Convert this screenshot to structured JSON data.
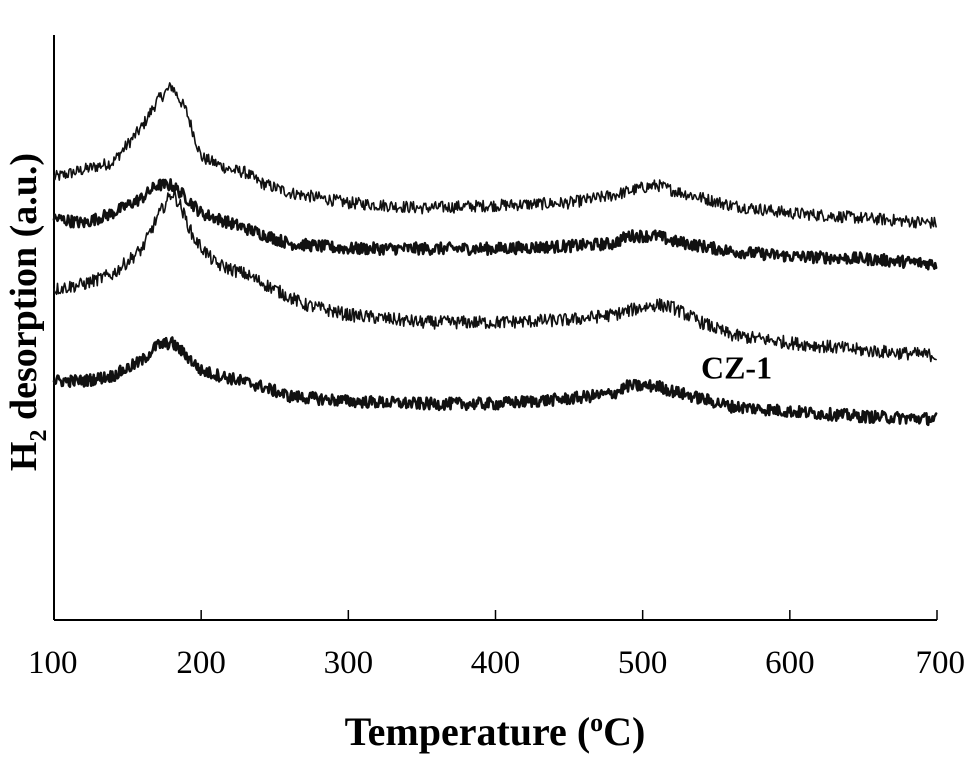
{
  "chart_data": {
    "type": "line",
    "xlabel": "Temperature (",
    "xlabel_sup": "o",
    "xlabel_unit": "C)",
    "ylabel_prefix": "H",
    "ylabel_sub": "2",
    "ylabel_rest": " desorption (a.u.)",
    "xlim": [
      100,
      700
    ],
    "xticks": [
      100,
      200,
      300,
      400,
      500,
      600,
      700
    ],
    "y_ticks_shown": false,
    "grid": false,
    "legend": "none",
    "annotations": [
      {
        "text": "CZ-1",
        "x": 560,
        "series": 4
      }
    ],
    "series": [
      {
        "x": [
          100,
          120,
          140,
          160,
          170,
          180,
          190,
          200,
          220,
          230,
          240,
          260,
          300,
          350,
          400,
          450,
          480,
          500,
          510,
          520,
          540,
          560,
          600,
          650,
          700
        ],
        "y": [
          0.87,
          0.885,
          0.9,
          0.97,
          1.02,
          1.05,
          1.0,
          0.91,
          0.885,
          0.88,
          0.86,
          0.84,
          0.82,
          0.81,
          0.815,
          0.82,
          0.835,
          0.85,
          0.855,
          0.845,
          0.83,
          0.815,
          0.8,
          0.79,
          0.78
        ]
      },
      {
        "x": [
          100,
          120,
          140,
          160,
          170,
          180,
          190,
          200,
          220,
          240,
          260,
          300,
          350,
          400,
          450,
          480,
          490,
          500,
          510,
          520,
          540,
          560,
          600,
          650,
          700
        ],
        "y": [
          0.79,
          0.78,
          0.8,
          0.83,
          0.855,
          0.855,
          0.83,
          0.8,
          0.78,
          0.76,
          0.74,
          0.73,
          0.73,
          0.73,
          0.735,
          0.74,
          0.755,
          0.755,
          0.755,
          0.745,
          0.735,
          0.725,
          0.715,
          0.71,
          0.7
        ]
      },
      {
        "x": [
          100,
          120,
          140,
          160,
          170,
          180,
          185,
          195,
          210,
          230,
          250,
          270,
          300,
          350,
          400,
          450,
          480,
          500,
          510,
          520,
          540,
          560,
          600,
          650,
          700
        ],
        "y": [
          0.65,
          0.66,
          0.68,
          0.73,
          0.79,
          0.84,
          0.82,
          0.75,
          0.7,
          0.68,
          0.65,
          0.62,
          0.6,
          0.585,
          0.585,
          0.59,
          0.6,
          0.615,
          0.62,
          0.615,
          0.585,
          0.56,
          0.545,
          0.53,
          0.52
        ]
      },
      {
        "x": [
          100,
          120,
          140,
          160,
          170,
          180,
          190,
          200,
          220,
          240,
          260,
          300,
          350,
          400,
          450,
          480,
          490,
          500,
          510,
          520,
          540,
          560,
          600,
          650,
          700
        ],
        "y": [
          0.47,
          0.47,
          0.48,
          0.51,
          0.54,
          0.545,
          0.52,
          0.49,
          0.475,
          0.46,
          0.44,
          0.43,
          0.425,
          0.425,
          0.435,
          0.445,
          0.46,
          0.46,
          0.46,
          0.45,
          0.435,
          0.42,
          0.41,
          0.4,
          0.395
        ]
      }
    ]
  }
}
